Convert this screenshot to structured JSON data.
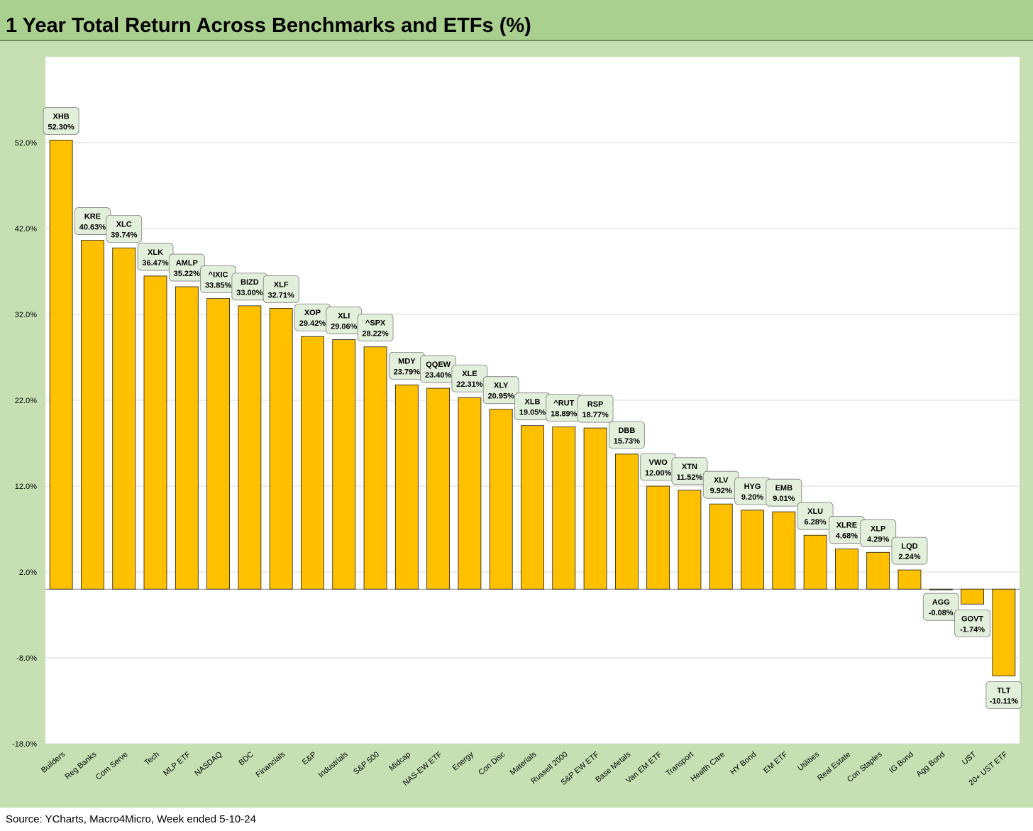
{
  "title": "1 Year Total Return Across Benchmarks and ETFs (%)",
  "source": "Source: YCharts, Macro4Micro, Week ended 5-10-24",
  "colors": {
    "bar": "#ffc000",
    "bar_stroke": "#1a1a1a",
    "label_bg": "#e2efda",
    "frame": "#c6e0b4",
    "title_bar": "#a9d08e",
    "grid": "#d9d9d9"
  },
  "chart_data": {
    "type": "bar",
    "title": "1 Year Total Return Across Benchmarks and ETFs (%)",
    "xlabel": "",
    "ylabel": "",
    "ylim": [
      -18,
      62
    ],
    "yticks": [
      -18,
      -8,
      2,
      12,
      22,
      32,
      42,
      52
    ],
    "ytick_labels": [
      "-18.0%",
      "-8.0%",
      "2.0%",
      "12.0%",
      "22.0%",
      "32.0%",
      "42.0%",
      "52.0%"
    ],
    "grid": true,
    "legend": "none",
    "categories": [
      "Builders",
      "Reg Banks",
      "Com Serve",
      "Tech",
      "MLP ETF",
      "NASDAQ",
      "BDC",
      "Financials",
      "E&P",
      "Industrials",
      "S&P 500",
      "Midcap",
      "NAS-EW ETF",
      "Energy",
      "Con Disc",
      "Materials",
      "Russell 2000",
      "S&P EW ETF",
      "Base Metals",
      "Van EM ETF",
      "Transport",
      "Health Care",
      "HY Bond",
      "EM ETF",
      "Utilities",
      "Real Estate",
      "Con Staples",
      "IG Bond",
      "Agg Bond",
      "UST",
      "20+ UST ETF"
    ],
    "tickers": [
      "XHB",
      "KRE",
      "XLC",
      "XLK",
      "AMLP",
      "^IXIC",
      "BIZD",
      "XLF",
      "XOP",
      "XLI",
      "^SPX",
      "MDY",
      "QQEW",
      "XLE",
      "XLY",
      "XLB",
      "^RUT",
      "RSP",
      "DBB",
      "VWO",
      "XTN",
      "XLV",
      "HYG",
      "EMB",
      "XLU",
      "XLRE",
      "XLP",
      "LQD",
      "AGG",
      "GOVT",
      "TLT"
    ],
    "values": [
      52.3,
      40.63,
      39.74,
      36.47,
      35.22,
      33.85,
      33.0,
      32.71,
      29.42,
      29.06,
      28.22,
      23.79,
      23.4,
      22.31,
      20.95,
      19.05,
      18.89,
      18.77,
      15.73,
      12.0,
      11.52,
      9.92,
      9.2,
      9.01,
      6.28,
      4.68,
      4.29,
      2.24,
      -0.08,
      -1.74,
      -10.11
    ],
    "value_labels": [
      "52.30%",
      "40.63%",
      "39.74%",
      "36.47%",
      "35.22%",
      "33.85%",
      "33.00%",
      "32.71%",
      "29.42%",
      "29.06%",
      "28.22%",
      "23.79%",
      "23.40%",
      "22.31%",
      "20.95%",
      "19.05%",
      "18.89%",
      "18.77%",
      "15.73%",
      "12.00%",
      "11.52%",
      "9.92%",
      "9.20%",
      "9.01%",
      "6.28%",
      "4.68%",
      "4.29%",
      "2.24%",
      "-0.08%",
      "-1.74%",
      "-10.11%"
    ]
  }
}
